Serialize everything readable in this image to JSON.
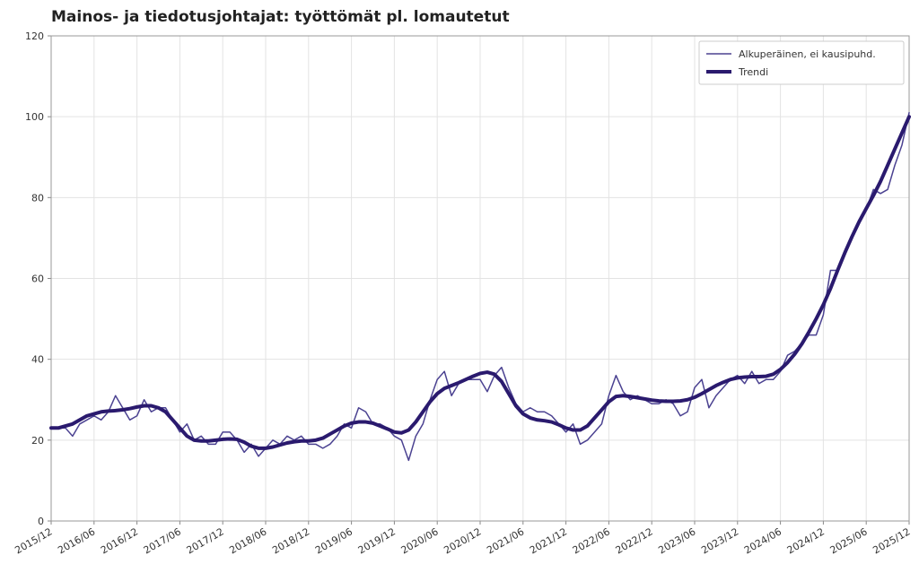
{
  "chart_data": {
    "type": "line",
    "title": "Mainos- ja tiedotusjohtajat: työttömät pl. lomautetut",
    "categories": [
      "2015/12",
      null,
      null,
      null,
      null,
      null,
      "2016/06",
      null,
      null,
      null,
      null,
      null,
      "2016/12",
      null,
      null,
      null,
      null,
      null,
      "2017/06",
      null,
      null,
      null,
      null,
      null,
      "2017/12",
      null,
      null,
      null,
      null,
      null,
      "2018/06",
      null,
      null,
      null,
      null,
      null,
      "2018/12",
      null,
      null,
      null,
      null,
      null,
      "2019/06",
      null,
      null,
      null,
      null,
      null,
      "2019/12",
      null,
      null,
      null,
      null,
      null,
      "2020/06",
      null,
      null,
      null,
      null,
      null,
      "2020/12",
      null,
      null,
      null,
      null,
      null,
      "2021/06",
      null,
      null,
      null,
      null,
      null,
      "2021/12",
      null,
      null,
      null,
      null,
      null,
      "2022/06",
      null,
      null,
      null,
      null,
      null,
      "2022/12",
      null,
      null,
      null,
      null,
      null,
      "2023/06",
      null,
      null,
      null,
      null,
      null,
      "2023/12",
      null,
      null,
      null,
      null,
      null,
      "2024/06",
      null,
      null,
      null,
      null,
      null,
      "2024/12",
      null,
      null,
      null,
      null,
      null,
      "2025/06",
      null,
      null,
      null,
      null,
      null,
      "2025/12"
    ],
    "series": [
      {
        "name": "Alkuperäinen, ei kausipuhd.",
        "color": "#4b4291",
        "width": 1.5,
        "values": [
          23,
          23,
          23,
          21,
          24,
          25,
          26,
          25,
          27,
          31,
          28,
          25,
          26,
          30,
          27,
          28,
          28,
          25,
          22,
          24,
          20,
          21,
          19,
          19,
          22,
          22,
          20,
          17,
          19,
          16,
          18,
          20,
          19,
          21,
          20,
          21,
          19,
          19,
          18,
          19,
          21,
          24,
          23,
          28,
          27,
          24,
          24,
          23,
          21,
          20,
          15,
          21,
          24,
          30,
          35,
          37,
          31,
          34,
          35,
          35,
          35,
          32,
          36,
          38,
          33,
          29,
          27,
          28,
          27,
          27,
          26,
          24,
          22,
          24,
          19,
          20,
          22,
          24,
          31,
          36,
          32,
          30,
          31,
          30,
          29,
          29,
          30,
          29,
          26,
          27,
          33,
          35,
          28,
          31,
          33,
          35,
          36,
          34,
          37,
          34,
          35,
          35,
          37,
          41,
          42,
          44,
          46,
          46,
          51,
          62,
          62,
          66,
          70,
          74,
          77,
          82,
          81,
          82,
          88,
          93,
          101
        ]
      },
      {
        "name": "Trendi",
        "color": "#2a1a6e",
        "width": 4,
        "values": [
          23,
          23,
          23.5,
          24,
          25,
          26,
          26.5,
          27,
          27.2,
          27.3,
          27.5,
          27.8,
          28.2,
          28.5,
          28.5,
          28,
          27,
          25,
          23,
          21,
          20,
          19.8,
          19.8,
          20,
          20.2,
          20.3,
          20.2,
          19.5,
          18.5,
          18,
          18,
          18.3,
          18.8,
          19.3,
          19.6,
          19.8,
          19.8,
          20,
          20.5,
          21.5,
          22.5,
          23.5,
          24.2,
          24.5,
          24.5,
          24.2,
          23.5,
          22.8,
          22,
          21.8,
          22.5,
          24.5,
          27,
          29.5,
          31.5,
          32.8,
          33.5,
          34.2,
          35,
          35.8,
          36.5,
          36.8,
          36.3,
          34.5,
          31.5,
          28.5,
          26.5,
          25.5,
          25,
          24.8,
          24.5,
          23.8,
          23,
          22.5,
          22.5,
          23.5,
          25.5,
          27.5,
          29.5,
          30.8,
          31,
          30.8,
          30.5,
          30.2,
          29.9,
          29.7,
          29.6,
          29.6,
          29.7,
          30,
          30.6,
          31.5,
          32.5,
          33.5,
          34.3,
          35,
          35.4,
          35.6,
          35.7,
          35.7,
          35.8,
          36.3,
          37.5,
          39.2,
          41.3,
          43.8,
          46.8,
          50,
          53.5,
          57.5,
          62,
          66.3,
          70.3,
          74,
          77.3,
          80.5,
          84,
          88,
          92,
          96,
          100
        ]
      }
    ],
    "ylim": [
      0,
      120
    ],
    "yticks": [
      0,
      20,
      40,
      60,
      80,
      100,
      120
    ],
    "grid": true,
    "legend": "upper right"
  }
}
